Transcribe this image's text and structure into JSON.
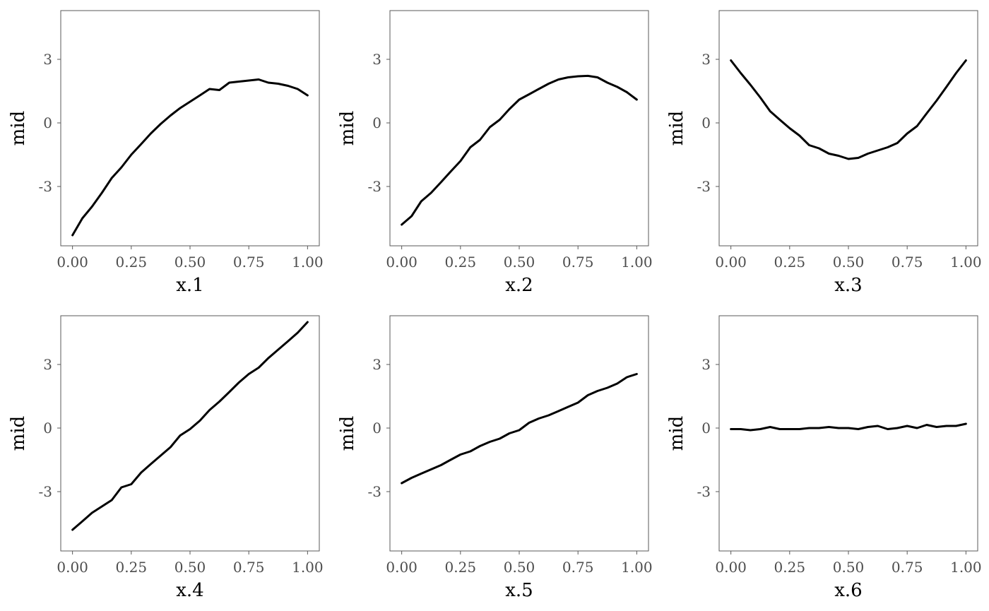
{
  "chart_data": [
    {
      "type": "line",
      "xlabel": "x.1",
      "ylabel": "mid",
      "xlim": [
        -0.05,
        1.05
      ],
      "ylim": [
        -5.8,
        5.3
      ],
      "xticks": [
        0,
        0.25,
        0.5,
        0.75,
        1
      ],
      "xtick_labels": [
        "0.00",
        "0.25",
        "0.50",
        "0.75",
        "1.00"
      ],
      "yticks": [
        -3,
        0,
        3
      ],
      "ytick_labels": [
        "-3",
        "0",
        "3"
      ],
      "grid": false,
      "x": [
        0,
        0.042,
        0.083,
        0.125,
        0.167,
        0.208,
        0.25,
        0.292,
        0.333,
        0.375,
        0.417,
        0.458,
        0.5,
        0.542,
        0.583,
        0.625,
        0.667,
        0.708,
        0.75,
        0.792,
        0.833,
        0.875,
        0.917,
        0.958,
        1
      ],
      "y": [
        -5.3,
        -4.5,
        -3.95,
        -3.3,
        -2.6,
        -2.1,
        -1.5,
        -1.0,
        -0.5,
        -0.05,
        0.35,
        0.7,
        1.0,
        1.3,
        1.6,
        1.55,
        1.9,
        1.95,
        2.0,
        2.05,
        1.9,
        1.85,
        1.75,
        1.6,
        1.3
      ]
    },
    {
      "type": "line",
      "xlabel": "x.2",
      "ylabel": "mid",
      "xlim": [
        -0.05,
        1.05
      ],
      "ylim": [
        -5.8,
        5.3
      ],
      "xticks": [
        0,
        0.25,
        0.5,
        0.75,
        1
      ],
      "xtick_labels": [
        "0.00",
        "0.25",
        "0.50",
        "0.75",
        "1.00"
      ],
      "yticks": [
        -3,
        0,
        3
      ],
      "ytick_labels": [
        "-3",
        "0",
        "3"
      ],
      "grid": false,
      "x": [
        0,
        0.042,
        0.083,
        0.125,
        0.167,
        0.208,
        0.25,
        0.292,
        0.333,
        0.375,
        0.417,
        0.458,
        0.5,
        0.542,
        0.583,
        0.625,
        0.667,
        0.708,
        0.75,
        0.792,
        0.833,
        0.875,
        0.917,
        0.958,
        1
      ],
      "y": [
        -4.8,
        -4.4,
        -3.7,
        -3.3,
        -2.8,
        -2.3,
        -1.8,
        -1.15,
        -0.8,
        -0.2,
        0.15,
        0.65,
        1.1,
        1.35,
        1.6,
        1.85,
        2.05,
        2.15,
        2.2,
        2.22,
        2.15,
        1.9,
        1.7,
        1.45,
        1.1
      ]
    },
    {
      "type": "line",
      "xlabel": "x.3",
      "ylabel": "mid",
      "xlim": [
        -0.05,
        1.05
      ],
      "ylim": [
        -5.8,
        5.3
      ],
      "xticks": [
        0,
        0.25,
        0.5,
        0.75,
        1
      ],
      "xtick_labels": [
        "0.00",
        "0.25",
        "0.50",
        "0.75",
        "1.00"
      ],
      "yticks": [
        -3,
        0,
        3
      ],
      "ytick_labels": [
        "-3",
        "0",
        "3"
      ],
      "grid": false,
      "x": [
        0,
        0.042,
        0.083,
        0.125,
        0.167,
        0.208,
        0.25,
        0.292,
        0.333,
        0.375,
        0.417,
        0.458,
        0.5,
        0.542,
        0.583,
        0.625,
        0.667,
        0.708,
        0.75,
        0.792,
        0.833,
        0.875,
        0.917,
        0.958,
        1
      ],
      "y": [
        2.95,
        2.35,
        1.8,
        1.2,
        0.55,
        0.15,
        -0.25,
        -0.6,
        -1.05,
        -1.2,
        -1.45,
        -1.55,
        -1.7,
        -1.65,
        -1.45,
        -1.3,
        -1.15,
        -0.95,
        -0.5,
        -0.15,
        0.45,
        1.05,
        1.7,
        2.35,
        2.95
      ]
    },
    {
      "type": "line",
      "xlabel": "x.4",
      "ylabel": "mid",
      "xlim": [
        -0.05,
        1.05
      ],
      "ylim": [
        -5.8,
        5.3
      ],
      "xticks": [
        0,
        0.25,
        0.5,
        0.75,
        1
      ],
      "xtick_labels": [
        "0.00",
        "0.25",
        "0.50",
        "0.75",
        "1.00"
      ],
      "yticks": [
        -3,
        0,
        3
      ],
      "ytick_labels": [
        "-3",
        "0",
        "3"
      ],
      "grid": false,
      "x": [
        0,
        0.042,
        0.083,
        0.125,
        0.167,
        0.208,
        0.25,
        0.292,
        0.333,
        0.375,
        0.417,
        0.458,
        0.5,
        0.542,
        0.583,
        0.625,
        0.667,
        0.708,
        0.75,
        0.792,
        0.833,
        0.875,
        0.917,
        0.958,
        1
      ],
      "y": [
        -4.8,
        -4.4,
        -4.0,
        -3.7,
        -3.4,
        -2.8,
        -2.65,
        -2.1,
        -1.7,
        -1.3,
        -0.9,
        -0.35,
        -0.05,
        0.35,
        0.85,
        1.25,
        1.7,
        2.15,
        2.55,
        2.85,
        3.3,
        3.7,
        4.1,
        4.5,
        5.0
      ]
    },
    {
      "type": "line",
      "xlabel": "x.5",
      "ylabel": "mid",
      "xlim": [
        -0.05,
        1.05
      ],
      "ylim": [
        -5.8,
        5.3
      ],
      "xticks": [
        0,
        0.25,
        0.5,
        0.75,
        1
      ],
      "xtick_labels": [
        "0.00",
        "0.25",
        "0.50",
        "0.75",
        "1.00"
      ],
      "yticks": [
        -3,
        0,
        3
      ],
      "ytick_labels": [
        "-3",
        "0",
        "3"
      ],
      "grid": false,
      "x": [
        0,
        0.042,
        0.083,
        0.125,
        0.167,
        0.208,
        0.25,
        0.292,
        0.333,
        0.375,
        0.417,
        0.458,
        0.5,
        0.542,
        0.583,
        0.625,
        0.667,
        0.708,
        0.75,
        0.792,
        0.833,
        0.875,
        0.917,
        0.958,
        1
      ],
      "y": [
        -2.6,
        -2.35,
        -2.15,
        -1.95,
        -1.75,
        -1.5,
        -1.25,
        -1.1,
        -0.85,
        -0.65,
        -0.5,
        -0.25,
        -0.1,
        0.25,
        0.45,
        0.6,
        0.8,
        1.0,
        1.2,
        1.55,
        1.75,
        1.9,
        2.1,
        2.4,
        2.55
      ]
    },
    {
      "type": "line",
      "xlabel": "x.6",
      "ylabel": "mid",
      "xlim": [
        -0.05,
        1.05
      ],
      "ylim": [
        -5.8,
        5.3
      ],
      "xticks": [
        0,
        0.25,
        0.5,
        0.75,
        1
      ],
      "xtick_labels": [
        "0.00",
        "0.25",
        "0.50",
        "0.75",
        "1.00"
      ],
      "yticks": [
        -3,
        0,
        3
      ],
      "ytick_labels": [
        "-3",
        "0",
        "3"
      ],
      "grid": false,
      "x": [
        0,
        0.042,
        0.083,
        0.125,
        0.167,
        0.208,
        0.25,
        0.292,
        0.333,
        0.375,
        0.417,
        0.458,
        0.5,
        0.542,
        0.583,
        0.625,
        0.667,
        0.708,
        0.75,
        0.792,
        0.833,
        0.875,
        0.917,
        0.958,
        1
      ],
      "y": [
        -0.05,
        -0.05,
        -0.1,
        -0.05,
        0.05,
        -0.05,
        -0.05,
        -0.05,
        0.0,
        0.0,
        0.05,
        0.0,
        0.0,
        -0.05,
        0.05,
        0.1,
        -0.05,
        0.0,
        0.1,
        0.0,
        0.15,
        0.05,
        0.1,
        0.1,
        0.2
      ]
    }
  ]
}
